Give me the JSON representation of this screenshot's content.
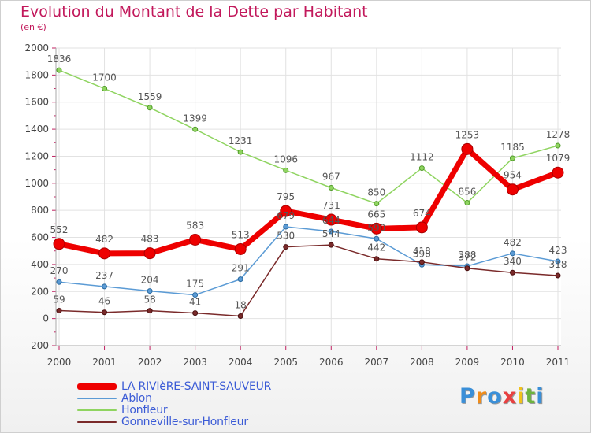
{
  "title": "Evolution du Montant de la Dette par Habitant",
  "subtitle": "(en €)",
  "logo": {
    "text": "Proxiti",
    "letters": [
      {
        "ch": "P",
        "color": "#3a8fd8"
      },
      {
        "ch": "r",
        "color": "#f08c1a"
      },
      {
        "ch": "o",
        "color": "#3a8fd8"
      },
      {
        "ch": "x",
        "color": "#e84040"
      },
      {
        "ch": "i",
        "color": "#f2c21a"
      },
      {
        "ch": "t",
        "color": "#6db33f"
      },
      {
        "ch": "i",
        "color": "#3a8fd8"
      }
    ]
  },
  "chart_data": {
    "type": "line",
    "title": "Evolution du Montant de la Dette par Habitant",
    "ylabel": "(en €)",
    "xlabel": "",
    "x": [
      "2000",
      "2001",
      "2002",
      "2003",
      "2004",
      "2005",
      "2006",
      "2007",
      "2008",
      "2009",
      "2010",
      "2011"
    ],
    "ylim": [
      -200,
      2000
    ],
    "yticks": [
      -200,
      0,
      200,
      400,
      600,
      800,
      1000,
      1200,
      1400,
      1600,
      1800,
      2000
    ],
    "grid": true,
    "legend_position": "bottom-left",
    "series": [
      {
        "name": "LA RIVIèRE-SAINT-SAUVEUR",
        "color": "#ee0000",
        "values": [
          552,
          482,
          483,
          583,
          513,
          795,
          731,
          665,
          674,
          1253,
          954,
          1079
        ]
      },
      {
        "name": "Ablon",
        "color": "#5b9bd5",
        "values": [
          270,
          237,
          204,
          175,
          291,
          679,
          644,
          590,
          398,
          388,
          482,
          423
        ]
      },
      {
        "name": "Honfleur",
        "color": "#8fd460",
        "values": [
          1836,
          1700,
          1559,
          1399,
          1231,
          1096,
          967,
          850,
          1112,
          856,
          1185,
          1278
        ]
      },
      {
        "name": "Gonneville-sur-Honfleur",
        "color": "#7a2a2a",
        "values": [
          59,
          46,
          58,
          41,
          18,
          530,
          544,
          442,
          418,
          372,
          340,
          318
        ]
      }
    ]
  }
}
